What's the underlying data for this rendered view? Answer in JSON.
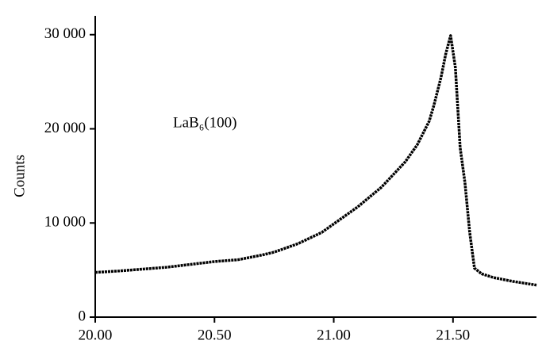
{
  "chart_data": {
    "type": "line",
    "y_label": "Counts",
    "annotation": "LaB₆(100)",
    "x": [
      20.0,
      20.1,
      20.2,
      20.3,
      20.4,
      20.5,
      20.6,
      20.7,
      20.75,
      20.85,
      20.95,
      21.0,
      21.1,
      21.2,
      21.3,
      21.35,
      21.4,
      21.42,
      21.45,
      21.47,
      21.49,
      21.51,
      21.53,
      21.55,
      21.57,
      21.59,
      21.62,
      21.67,
      21.75,
      21.85
    ],
    "series": [
      {
        "name": "LaB₆(100)",
        "color": "#000000",
        "values": [
          4750,
          4900,
          5100,
          5300,
          5600,
          5900,
          6100,
          6600,
          6900,
          7800,
          9000,
          9900,
          11700,
          13800,
          16500,
          18300,
          20800,
          22500,
          25500,
          28000,
          29900,
          26500,
          18000,
          14300,
          9000,
          5200,
          4600,
          4200,
          3800,
          3400
        ]
      }
    ],
    "xlim": [
      20.0,
      21.85
    ],
    "ylim": [
      0,
      32000
    ],
    "xticks": [
      {
        "value": 20.0,
        "label": "20.00"
      },
      {
        "value": 20.5,
        "label": "20.50"
      },
      {
        "value": 21.0,
        "label": "21.00"
      },
      {
        "value": 21.5,
        "label": "21.50"
      }
    ],
    "yticks": [
      0,
      {
        "value": 10000,
        "label": "10 000"
      },
      {
        "value": 20000,
        "label": "20 000"
      },
      {
        "value": 30000,
        "label": "30 000"
      }
    ],
    "grid": false
  }
}
